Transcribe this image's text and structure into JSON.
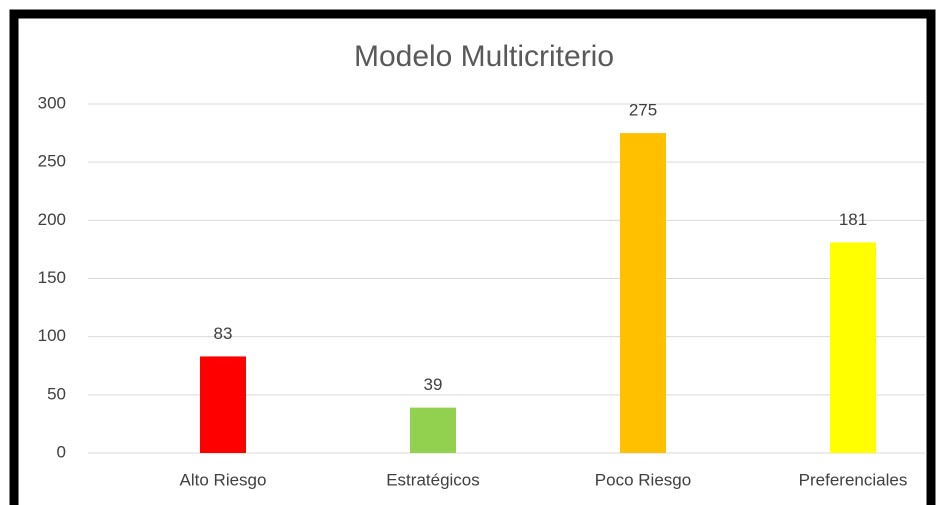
{
  "chart_data": {
    "type": "bar",
    "title": "Modelo Multicriterio",
    "categories": [
      "Alto Riesgo",
      "Estratégicos",
      "Poco Riesgo",
      "Preferenciales"
    ],
    "values": [
      83,
      39,
      275,
      181
    ],
    "colors": [
      "#ff0000",
      "#92d050",
      "#ffc000",
      "#ffff00"
    ],
    "ylim": [
      0,
      300
    ],
    "yticks": [
      0,
      50,
      100,
      150,
      200,
      250,
      300
    ],
    "grid": true
  }
}
